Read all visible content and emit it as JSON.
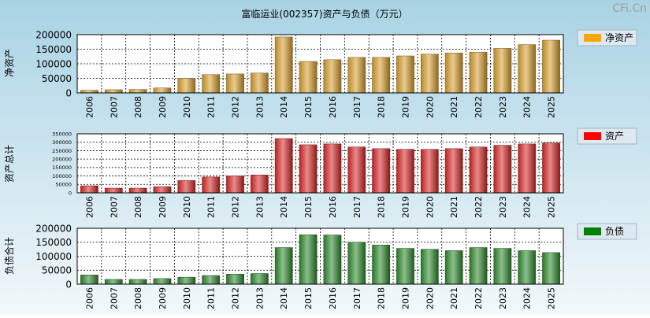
{
  "watermark": "CFi.Cn",
  "chart_data": [
    {
      "type": "bar",
      "title": "富临运业(002357)资产与负债（万元）",
      "ylabel": "净资产",
      "legend": "净资产",
      "legend_color": "#FFA500",
      "bar_base": "#D9A030",
      "categories": [
        "2006",
        "2007",
        "2008",
        "2009",
        "2010",
        "2011",
        "2012",
        "2013",
        "2014",
        "2015",
        "2016",
        "2017",
        "2018",
        "2019",
        "2020",
        "2021",
        "2022",
        "2023",
        "2024",
        "2025"
      ],
      "values": [
        9000,
        11000,
        12000,
        17000,
        50000,
        63000,
        65000,
        68000,
        192000,
        108000,
        114000,
        122000,
        122000,
        127000,
        133000,
        137000,
        140000,
        153000,
        166000,
        181000
      ],
      "yticks": [
        0,
        50000,
        100000,
        150000,
        200000
      ],
      "ylim": [
        0,
        200000
      ]
    },
    {
      "type": "bar",
      "ylabel": "资产总计",
      "legend": "资产",
      "legend_color": "#FF0000",
      "bar_base": "#D82828",
      "categories": [
        "2006",
        "2007",
        "2008",
        "2009",
        "2010",
        "2011",
        "2012",
        "2013",
        "2014",
        "2015",
        "2016",
        "2017",
        "2018",
        "2019",
        "2020",
        "2021",
        "2022",
        "2023",
        "2024",
        "2025"
      ],
      "values": [
        42000,
        28000,
        28000,
        37000,
        73000,
        94000,
        100000,
        106000,
        322000,
        285000,
        290000,
        272000,
        262000,
        258000,
        258000,
        262000,
        272000,
        282000,
        290000,
        296000
      ],
      "yticks": [
        0,
        50000,
        100000,
        150000,
        200000,
        250000,
        300000,
        350000
      ],
      "ylim": [
        0,
        350000
      ]
    },
    {
      "type": "bar",
      "ylabel": "负债合计",
      "legend": "负债",
      "legend_color": "#008000",
      "bar_base": "#2E8B2E",
      "categories": [
        "2006",
        "2007",
        "2008",
        "2009",
        "2010",
        "2011",
        "2012",
        "2013",
        "2014",
        "2015",
        "2016",
        "2017",
        "2018",
        "2019",
        "2020",
        "2021",
        "2022",
        "2023",
        "2024",
        "2025"
      ],
      "values": [
        33000,
        17000,
        17000,
        20000,
        25000,
        31000,
        36000,
        38000,
        131000,
        177000,
        176000,
        150000,
        140000,
        128000,
        125000,
        120000,
        131000,
        128000,
        120000,
        113000
      ],
      "yticks": [
        0,
        50000,
        100000,
        150000,
        200000
      ],
      "ylim": [
        0,
        200000
      ]
    }
  ]
}
